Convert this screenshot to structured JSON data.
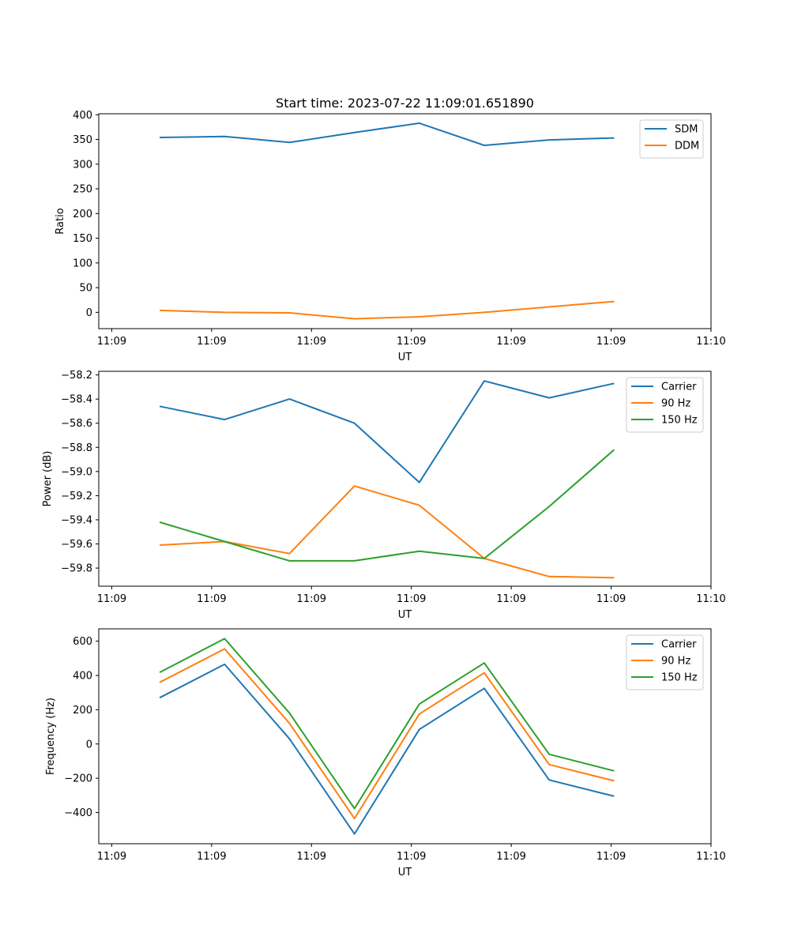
{
  "figure_title": "Start time: 2023-07-22 11:09:01.651890",
  "chart_data": [
    {
      "type": "line",
      "title": "Start time: 2023-07-22 11:09:01.651890",
      "xlabel": "UT",
      "ylabel": "Ratio",
      "xlim": [
        -0.13,
        6.0
      ],
      "ylim": [
        -33,
        402
      ],
      "x_ticks": [
        0,
        1,
        2,
        3,
        4,
        5,
        6
      ],
      "x_tick_labels": [
        "11:09",
        "11:09",
        "11:09",
        "11:09",
        "11:09",
        "11:09",
        "11:10"
      ],
      "y_ticks": [
        0,
        50,
        100,
        150,
        200,
        250,
        300,
        350,
        400
      ],
      "y_tick_labels": [
        "0",
        "50",
        "100",
        "150",
        "200",
        "250",
        "300",
        "350",
        "400"
      ],
      "legend_position": "top-right",
      "x": [
        0.48,
        1.13,
        1.78,
        2.43,
        3.08,
        3.73,
        4.38,
        5.03
      ],
      "series": [
        {
          "name": "SDM",
          "color": "#1f77b4",
          "values": [
            354,
            356,
            344,
            364,
            383,
            338,
            349,
            353
          ]
        },
        {
          "name": "DDM",
          "color": "#ff7f0e",
          "values": [
            4,
            0,
            -1,
            -13,
            -9,
            0,
            11,
            22
          ]
        }
      ]
    },
    {
      "type": "line",
      "title": "",
      "xlabel": "UT",
      "ylabel": "Power (dB)",
      "xlim": [
        -0.13,
        6.0
      ],
      "ylim": [
        -59.95,
        -58.17
      ],
      "x_ticks": [
        0,
        1,
        2,
        3,
        4,
        5,
        6
      ],
      "x_tick_labels": [
        "11:09",
        "11:09",
        "11:09",
        "11:09",
        "11:09",
        "11:09",
        "11:10"
      ],
      "y_ticks": [
        -59.8,
        -59.6,
        -59.4,
        -59.2,
        -59.0,
        -58.8,
        -58.6,
        -58.4,
        -58.2
      ],
      "y_tick_labels": [
        "−59.8",
        "−59.6",
        "−59.4",
        "−59.2",
        "−59.0",
        "−58.8",
        "−58.6",
        "−58.4",
        "−58.2"
      ],
      "legend_position": "top-right",
      "x": [
        0.48,
        1.13,
        1.78,
        2.43,
        3.08,
        3.73,
        4.38,
        5.03
      ],
      "series": [
        {
          "name": "Carrier",
          "color": "#1f77b4",
          "values": [
            -58.46,
            -58.57,
            -58.4,
            -58.6,
            -59.09,
            -58.25,
            -58.39,
            -58.27
          ]
        },
        {
          "name": "90 Hz",
          "color": "#ff7f0e",
          "values": [
            -59.61,
            -59.58,
            -59.68,
            -59.12,
            -59.28,
            -59.72,
            -59.87,
            -59.88
          ]
        },
        {
          "name": "150 Hz",
          "color": "#2ca02c",
          "values": [
            -59.42,
            -59.58,
            -59.74,
            -59.74,
            -59.66,
            -59.72,
            -59.29,
            -58.82
          ]
        }
      ]
    },
    {
      "type": "line",
      "title": "",
      "xlabel": "UT",
      "ylabel": "Frequency (Hz)",
      "xlim": [
        -0.13,
        6.0
      ],
      "ylim": [
        -582,
        672
      ],
      "x_ticks": [
        0,
        1,
        2,
        3,
        4,
        5,
        6
      ],
      "x_tick_labels": [
        "11:09",
        "11:09",
        "11:09",
        "11:09",
        "11:09",
        "11:09",
        "11:10"
      ],
      "y_ticks": [
        -400,
        -200,
        0,
        200,
        400,
        600
      ],
      "y_tick_labels": [
        "−400",
        "−200",
        "0",
        "200",
        "400",
        "600"
      ],
      "legend_position": "top-right",
      "x": [
        0.48,
        1.13,
        1.78,
        2.43,
        3.08,
        3.73,
        4.38,
        5.03
      ],
      "series": [
        {
          "name": "Carrier",
          "color": "#1f77b4",
          "values": [
            270,
            465,
            30,
            -525,
            85,
            325,
            -210,
            -305
          ]
        },
        {
          "name": "90 Hz",
          "color": "#ff7f0e",
          "values": [
            360,
            555,
            120,
            -435,
            175,
            415,
            -120,
            -215
          ]
        },
        {
          "name": "150 Hz",
          "color": "#2ca02c",
          "values": [
            418,
            615,
            180,
            -377,
            233,
            473,
            -60,
            -157
          ]
        }
      ]
    }
  ]
}
